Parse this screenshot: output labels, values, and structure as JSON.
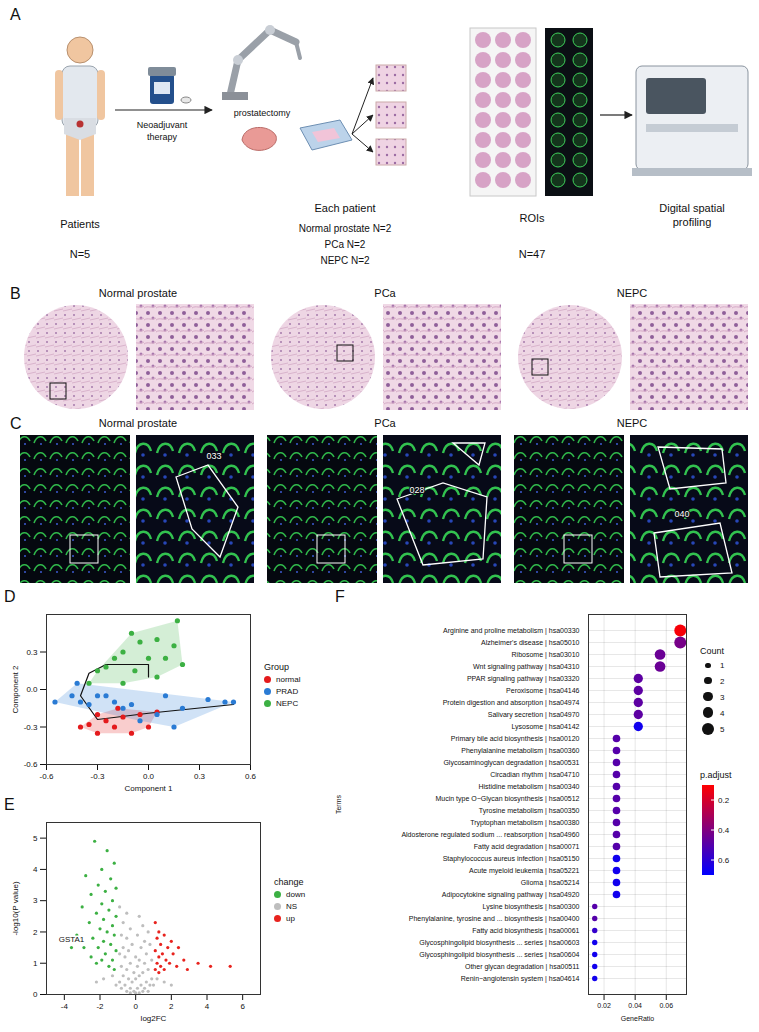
{
  "panel_a": {
    "panel": "A",
    "patients": {
      "label": "Patients",
      "n": "N=5"
    },
    "treatment": "Neoadjuvant therapy",
    "surgery": "prostatectomy",
    "each_patient": {
      "label": "Each patient",
      "groups": [
        "Normal prostate N=2",
        "PCa N=2",
        "NEPC N=2"
      ]
    },
    "rois": {
      "label": "ROIs",
      "n": "N=47"
    },
    "platform": "Digital spatial profiling"
  },
  "panel_b": {
    "panel": "B",
    "titles": [
      "Normal prostate",
      "PCa",
      "NEPC"
    ]
  },
  "panel_c": {
    "panel": "C",
    "titles": [
      "Normal prostate",
      "PCa",
      "NEPC"
    ],
    "roi_ids": [
      "033",
      "028",
      "040"
    ]
  },
  "chart_data": [
    {
      "panel": "D",
      "type": "scatter",
      "xlabel": "Component 1",
      "ylabel": "Component 2",
      "xlim": [
        -0.6,
        0.6
      ],
      "ylim": [
        -0.6,
        0.6
      ],
      "xticks": [
        -0.6,
        -0.3,
        {
          "value": 0,
          "label": "0.0"
        },
        0.3,
        0.6
      ],
      "yticks": [
        -0.6,
        -0.3,
        {
          "value": 0,
          "label": "0.0"
        },
        0.3
      ],
      "grid": false,
      "legend": "right",
      "legend_title": "Group",
      "series": [
        {
          "name": "normal",
          "color": "#e41a1c",
          "x": [
            -0.4,
            -0.35,
            -0.3,
            -0.25,
            -0.2,
            -0.15,
            -0.1,
            -0.05,
            0.0,
            -0.3,
            -0.18,
            0.05
          ],
          "y": [
            -0.3,
            -0.28,
            -0.35,
            -0.25,
            -0.3,
            -0.22,
            -0.35,
            -0.2,
            -0.3,
            -0.2,
            -0.15,
            -0.18
          ]
        },
        {
          "name": "PRAD",
          "color": "#2a7bd4",
          "x": [
            -0.55,
            -0.45,
            -0.4,
            -0.35,
            -0.3,
            -0.25,
            -0.42,
            -0.2,
            -0.1,
            0.35,
            0.45,
            0.5,
            0.2,
            0.1,
            0.15,
            -0.05,
            0.05,
            -0.15
          ],
          "y": [
            -0.1,
            -0.05,
            -0.1,
            -0.12,
            -0.05,
            -0.05,
            0.05,
            -0.1,
            -0.12,
            -0.08,
            -0.1,
            -0.1,
            -0.15,
            -0.05,
            -0.3,
            -0.25,
            -0.2,
            -0.15
          ]
        },
        {
          "name": "NEPC",
          "color": "#3cb043",
          "x": [
            0.17,
            -0.1,
            -0.05,
            0.05,
            -0.15,
            -0.2,
            -0.25,
            0.0,
            0.1,
            -0.08,
            -0.3,
            0.05,
            -0.15,
            0.15,
            -0.35,
            0.2
          ],
          "y": [
            0.55,
            0.45,
            0.38,
            0.4,
            0.3,
            0.25,
            0.18,
            0.25,
            0.25,
            0.15,
            0.15,
            0.1,
            0.05,
            0.35,
            0.05,
            0.2
          ]
        }
      ],
      "trajectory": {
        "x": [
          0.5,
          0.0,
          -0.3,
          -0.4,
          -0.35,
          -0.25,
          0.0,
          0.0
        ],
        "y": [
          -0.12,
          -0.19,
          -0.24,
          -0.05,
          0.13,
          0.2,
          0.2,
          0.1
        ]
      }
    },
    {
      "panel": "E",
      "type": "scatter",
      "xlabel": "log2FC",
      "ylabel": "-log10(P value)",
      "xlim": [
        -5,
        7
      ],
      "ylim": [
        0,
        5.5
      ],
      "xticks": [
        -4,
        -2,
        0,
        2,
        4,
        6
      ],
      "yticks": [
        0,
        1,
        2,
        3,
        4,
        5
      ],
      "grid": false,
      "legend": "right",
      "legend_title": "change",
      "series": [
        {
          "name": "down",
          "color": "#3cb043",
          "x": [
            -2.3,
            -1.6,
            -1.2,
            -1.9,
            -2.8,
            -1.4,
            -2.1,
            -1.1,
            -1.7,
            -2.5,
            -1.3,
            -1.9,
            -3.0,
            -1.5,
            -2.2,
            -1.1,
            -1.8,
            -2.6,
            -1.3,
            -2.0,
            -1.6,
            -3.3,
            -1.2,
            -2.4,
            -1.8,
            -1.4,
            -2.9,
            -2.1,
            -1.1,
            -1.7,
            -2.5,
            -1.3,
            -1.9,
            -3.6,
            -2.2,
            -1.5,
            -1.2
          ],
          "y": [
            4.9,
            4.6,
            4.2,
            4.0,
            3.8,
            3.7,
            3.5,
            3.4,
            3.3,
            3.2,
            3.0,
            2.9,
            2.8,
            2.7,
            2.6,
            2.5,
            2.4,
            2.3,
            2.2,
            2.1,
            2.0,
            1.9,
            1.9,
            1.8,
            1.7,
            1.6,
            1.5,
            1.5,
            1.4,
            1.3,
            1.2,
            1.1,
            1.1,
            1.5,
            1.0,
            0.9,
            0.8
          ]
        },
        {
          "name": "NS",
          "color": "#bebebe",
          "x": [
            -0.9,
            -0.5,
            0.2,
            -0.7,
            0.4,
            -0.3,
            0.7,
            -0.8,
            0.1,
            -0.5,
            0.5,
            -0.2,
            0.8,
            -0.7,
            0.3,
            -0.4,
            0.6,
            -0.9,
            0.0,
            -0.6,
            0.9,
            0.2,
            -0.3,
            0.5,
            -0.8,
            0.1,
            -0.5,
            0.7,
            -0.1,
            0.4,
            -0.7,
            0.2,
            0.9,
            -0.4,
            0.0,
            0.6,
            -0.9,
            -0.2,
            0.3,
            -0.6,
            0.8,
            0.1,
            -0.3,
            0.5,
            -0.8,
            -0.1,
            0.4,
            -0.5,
            0.7,
            0.0,
            0.2,
            -0.3,
            1.2,
            -1.3,
            1.6,
            -1.8,
            1.0,
            -1.1,
            -2.2,
            2.0
          ],
          "y": [
            2.8,
            2.6,
            2.5,
            2.3,
            2.2,
            2.1,
            2.0,
            1.9,
            1.9,
            1.8,
            1.7,
            1.6,
            1.6,
            1.5,
            1.5,
            1.4,
            1.3,
            1.3,
            1.2,
            1.2,
            1.1,
            1.1,
            1.0,
            1.0,
            0.9,
            0.9,
            0.8,
            0.8,
            0.7,
            0.7,
            0.6,
            0.6,
            0.5,
            0.5,
            0.5,
            0.4,
            0.4,
            0.4,
            0.3,
            0.3,
            0.3,
            0.2,
            0.2,
            0.2,
            0.2,
            0.1,
            0.1,
            0.1,
            0.1,
            0.05,
            0.05,
            0.05,
            0.5,
            0.6,
            0.4,
            0.5,
            0.3,
            0.3,
            0.4,
            0.3
          ]
        },
        {
          "name": "up",
          "color": "#e8231e",
          "x": [
            1.1,
            1.3,
            1.6,
            1.2,
            2.0,
            1.4,
            1.8,
            2.4,
            1.1,
            1.5,
            2.1,
            1.3,
            1.7,
            2.7,
            1.2,
            1.9,
            1.4,
            2.3,
            1.1,
            1.6,
            3.5,
            4.2,
            5.3,
            2.9,
            1.3
          ],
          "y": [
            2.3,
            2.0,
            1.9,
            1.8,
            1.7,
            1.6,
            1.5,
            1.5,
            1.4,
            1.3,
            1.3,
            1.2,
            1.1,
            1.1,
            1.0,
            1.0,
            0.9,
            0.9,
            0.8,
            0.8,
            1.0,
            0.9,
            0.9,
            0.8,
            0.7
          ]
        }
      ],
      "annotations": [
        {
          "text": "GSTA1",
          "x": -3.6,
          "y": 1.5
        }
      ]
    },
    {
      "panel": "F",
      "type": "dot",
      "xlabel": "GeneRatio",
      "ylabel": "Terms",
      "grid": true,
      "legend": "right",
      "xlim": [
        0.01,
        0.073
      ],
      "xticks": [
        0.02,
        0.04,
        0.06
      ],
      "categories": [
        "Arginine and proline metabolism | hsa00330",
        "Alzheimer's disease | hsa05010",
        "Ribosome | hsa03010",
        "Wnt signaling pathway | hsa04310",
        "PPAR signaling pathway | hsa03320",
        "Peroxisome | hsa04146",
        "Protein digestion and absorption | hsa04974",
        "Salivary secretion | hsa04970",
        "Lysosome | hsa04142",
        "Primary bile acid biosynthesis | hsa00120",
        "Phenylalanine metabolism | hsa00360",
        "Glycosaminoglycan degradation | hsa00531",
        "Circadian rhythm | hsa04710",
        "Histidine metabolism | hsa00340",
        "Mucin type O−Glycan biosynthesis | hsa00512",
        "Tyrosine metabolism | hsa00350",
        "Tryptophan metabolism | hsa00380",
        "Aldosterone regulated sodium ... reabsorption | hsa04960",
        "Fatty acid degradation | hsa00071",
        "Staphylococcus aureus infection | hsa05150",
        "Acute myeloid leukemia | hsa05221",
        "Glioma | hsa05214",
        "Adipocytokine signaling pathway | hsa04920",
        "Lysine biosynthesis | hsa00300",
        "Phenylalanine, tyrosine and ... biosynthesis | hsa00400",
        "Fatty acid biosynthesis | hsa00061",
        "Glycosphingolipid biosynthesis ... series | hsa00603",
        "Glycosphingolipid biosynthesis ... series | hsa00604",
        "Other glycan degradation | hsa00511",
        "Renin−angiotensin system | hsa04614"
      ],
      "values": [
        0.069,
        0.069,
        0.056,
        0.056,
        0.042,
        0.042,
        0.042,
        0.042,
        0.042,
        0.028,
        0.028,
        0.028,
        0.028,
        0.028,
        0.028,
        0.028,
        0.028,
        0.028,
        0.028,
        0.028,
        0.028,
        0.028,
        0.028,
        0.014,
        0.014,
        0.014,
        0.014,
        0.014,
        0.014,
        0.014
      ],
      "count": [
        5,
        5,
        4,
        4,
        3,
        3,
        3,
        3,
        3,
        2,
        2,
        2,
        2,
        2,
        2,
        2,
        2,
        2,
        2,
        2,
        2,
        2,
        2,
        1,
        1,
        1,
        1,
        1,
        1,
        1
      ],
      "p_adjust": [
        0.12,
        0.42,
        0.45,
        0.45,
        0.48,
        0.48,
        0.48,
        0.48,
        0.66,
        0.5,
        0.5,
        0.5,
        0.5,
        0.5,
        0.5,
        0.5,
        0.5,
        0.5,
        0.5,
        0.66,
        0.66,
        0.66,
        0.66,
        0.5,
        0.5,
        0.58,
        0.66,
        0.66,
        0.66,
        0.66
      ],
      "size_legend": {
        "title": "Count",
        "values": [
          1,
          2,
          3,
          4,
          5
        ]
      },
      "color_legend": {
        "title": "p.adjust",
        "lim": [
          0.1,
          0.7
        ],
        "ticks": [
          0.2,
          0.4,
          0.6
        ],
        "colors": [
          "#ff0000",
          "#0000ff"
        ]
      }
    }
  ]
}
